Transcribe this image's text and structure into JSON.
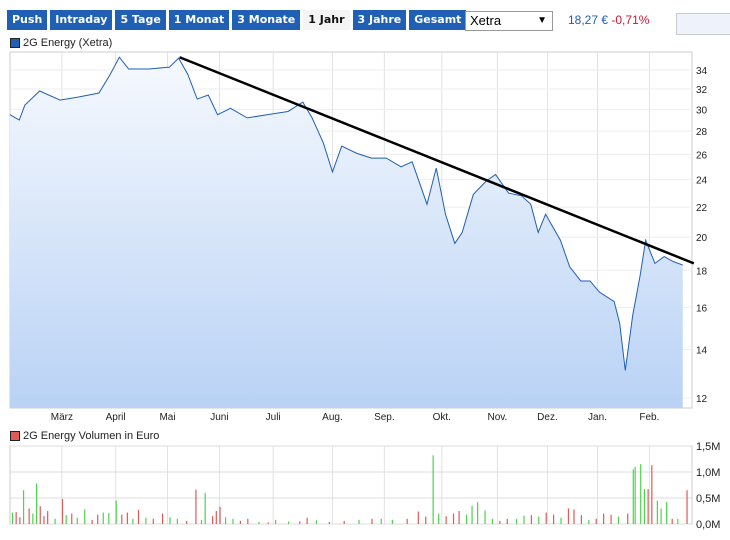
{
  "tabs": [
    "Push",
    "Intraday",
    "5 Tage",
    "1 Monat",
    "3 Monate",
    "1 Jahr",
    "3 Jahre",
    "Gesamt"
  ],
  "active_tab": "1 Jahr",
  "exchange_select": "Xetra",
  "quote": {
    "price": "18,27 €",
    "change": "-0,71%"
  },
  "colors": {
    "tab": "#1f5fb4",
    "line": "#1f5fb4",
    "up": "#4cd44c",
    "down": "#e05a5a"
  },
  "chart_data": [
    {
      "type": "area",
      "title": "2G Energy (Xetra)",
      "yscale": "log",
      "ylim": [
        11.5,
        36
      ],
      "xlim": [
        0,
        368
      ],
      "yticks": [
        12,
        14,
        16,
        18,
        20,
        22,
        24,
        26,
        28,
        30,
        32,
        34
      ],
      "xticks": [
        {
          "label": "März",
          "day": 28
        },
        {
          "label": "April",
          "day": 57
        },
        {
          "label": "Mai",
          "day": 85
        },
        {
          "label": "Juni",
          "day": 113
        },
        {
          "label": "Juli",
          "day": 142
        },
        {
          "label": "Aug.",
          "day": 174
        },
        {
          "label": "Sep.",
          "day": 202
        },
        {
          "label": "Okt.",
          "day": 233
        },
        {
          "label": "Nov.",
          "day": 263
        },
        {
          "label": "Dez.",
          "day": 290
        },
        {
          "label": "Jan.",
          "day": 317
        },
        {
          "label": "Feb.",
          "day": 345
        }
      ],
      "days": [
        0,
        5,
        8,
        16,
        27,
        37,
        48,
        54,
        59,
        64,
        75,
        86,
        91,
        96,
        101,
        107,
        112,
        119,
        128,
        139,
        150,
        158,
        163,
        169,
        174,
        179,
        187,
        195,
        203,
        211,
        217,
        225,
        230,
        235,
        240,
        244,
        250,
        257,
        262,
        269,
        276,
        281,
        285,
        289,
        297,
        302,
        308,
        313,
        318,
        326,
        329,
        332,
        336,
        340,
        343,
        348,
        353,
        358,
        363
      ],
      "prices": [
        29.5,
        29.0,
        30.4,
        31.8,
        30.9,
        31.2,
        31.6,
        33.5,
        35.4,
        34.1,
        34.1,
        34.3,
        35.3,
        33.5,
        31.0,
        31.4,
        29.5,
        30.1,
        29.2,
        29.5,
        29.8,
        30.7,
        29.2,
        27.0,
        24.6,
        26.7,
        26.1,
        25.7,
        25.7,
        25.0,
        25.4,
        22.2,
        24.9,
        21.5,
        19.6,
        20.3,
        22.9,
        23.9,
        24.4,
        23.0,
        22.8,
        22.2,
        20.3,
        21.5,
        19.8,
        18.2,
        17.4,
        17.4,
        16.8,
        16.3,
        15.2,
        13.1,
        15.6,
        17.7,
        19.8,
        18.4,
        18.8,
        18.5,
        18.3
      ],
      "trendline": {
        "from": {
          "day": 91.5,
          "price": 35.4
        },
        "to": {
          "day": 369,
          "price": 18.4
        }
      }
    },
    {
      "type": "bar",
      "title": "2G Energy Volumen in Euro",
      "ylim": [
        0,
        1.5
      ],
      "yticks": [
        "0,0M",
        "0,5M",
        "1,0M",
        "1,5M"
      ],
      "bars": [
        [
          1,
          0.22,
          "u"
        ],
        [
          3,
          0.23,
          "d"
        ],
        [
          5,
          0.13,
          "d"
        ],
        [
          7,
          0.65,
          "u"
        ],
        [
          10,
          0.3,
          "d"
        ],
        [
          12,
          0.2,
          "u"
        ],
        [
          14,
          0.78,
          "u"
        ],
        [
          16,
          0.34,
          "d"
        ],
        [
          18,
          0.15,
          "d"
        ],
        [
          20,
          0.25,
          "d"
        ],
        [
          24,
          0.1,
          "u"
        ],
        [
          28,
          0.48,
          "d"
        ],
        [
          30,
          0.17,
          "u"
        ],
        [
          33,
          0.2,
          "d"
        ],
        [
          36,
          0.12,
          "u"
        ],
        [
          40,
          0.28,
          "u"
        ],
        [
          44,
          0.08,
          "d"
        ],
        [
          47,
          0.18,
          "d"
        ],
        [
          50,
          0.22,
          "u"
        ],
        [
          53,
          0.21,
          "u"
        ],
        [
          57,
          0.45,
          "u"
        ],
        [
          60,
          0.18,
          "d"
        ],
        [
          63,
          0.22,
          "d"
        ],
        [
          66,
          0.1,
          "u"
        ],
        [
          69,
          0.27,
          "d"
        ],
        [
          73,
          0.12,
          "u"
        ],
        [
          77,
          0.1,
          "d"
        ],
        [
          82,
          0.2,
          "d"
        ],
        [
          86,
          0.13,
          "u"
        ],
        [
          90,
          0.1,
          "u"
        ],
        [
          95,
          0.06,
          "d"
        ],
        [
          100,
          0.66,
          "d"
        ],
        [
          103,
          0.08,
          "u"
        ],
        [
          105,
          0.6,
          "u"
        ],
        [
          109,
          0.15,
          "d"
        ],
        [
          111,
          0.25,
          "d"
        ],
        [
          113,
          0.33,
          "d"
        ],
        [
          116,
          0.13,
          "u"
        ],
        [
          120,
          0.1,
          "u"
        ],
        [
          124,
          0.06,
          "d"
        ],
        [
          128,
          0.1,
          "d"
        ],
        [
          134,
          0.04,
          "u"
        ],
        [
          139,
          0.03,
          "d"
        ],
        [
          143,
          0.08,
          "u"
        ],
        [
          150,
          0.05,
          "u"
        ],
        [
          156,
          0.05,
          "d"
        ],
        [
          160,
          0.12,
          "d"
        ],
        [
          165,
          0.07,
          "u"
        ],
        [
          172,
          0.04,
          "d"
        ],
        [
          180,
          0.06,
          "d"
        ],
        [
          188,
          0.08,
          "u"
        ],
        [
          195,
          0.1,
          "d"
        ],
        [
          200,
          0.1,
          "u"
        ],
        [
          206,
          0.08,
          "u"
        ],
        [
          214,
          0.1,
          "d"
        ],
        [
          220,
          0.24,
          "d"
        ],
        [
          224,
          0.14,
          "d"
        ],
        [
          228,
          1.32,
          "u"
        ],
        [
          231,
          0.2,
          "u"
        ],
        [
          235,
          0.15,
          "d"
        ],
        [
          239,
          0.2,
          "d"
        ],
        [
          242,
          0.25,
          "d"
        ],
        [
          246,
          0.18,
          "u"
        ],
        [
          249,
          0.35,
          "u"
        ],
        [
          252,
          0.42,
          "u"
        ],
        [
          256,
          0.26,
          "u"
        ],
        [
          260,
          0.1,
          "u"
        ],
        [
          264,
          0.06,
          "d"
        ],
        [
          268,
          0.1,
          "d"
        ],
        [
          273,
          0.1,
          "u"
        ],
        [
          277,
          0.16,
          "u"
        ],
        [
          281,
          0.17,
          "d"
        ],
        [
          285,
          0.14,
          "u"
        ],
        [
          289,
          0.22,
          "d"
        ],
        [
          293,
          0.18,
          "d"
        ],
        [
          297,
          0.12,
          "u"
        ],
        [
          301,
          0.3,
          "d"
        ],
        [
          304,
          0.28,
          "d"
        ],
        [
          308,
          0.17,
          "d"
        ],
        [
          312,
          0.08,
          "u"
        ],
        [
          316,
          0.1,
          "d"
        ],
        [
          320,
          0.2,
          "d"
        ],
        [
          324,
          0.18,
          "d"
        ],
        [
          328,
          0.14,
          "u"
        ],
        [
          333,
          0.2,
          "d"
        ],
        [
          336,
          1.05,
          "u"
        ],
        [
          337,
          1.1,
          "u"
        ],
        [
          340,
          1.15,
          "u"
        ],
        [
          342,
          0.67,
          "u"
        ],
        [
          344,
          0.67,
          "d"
        ],
        [
          346,
          1.13,
          "d"
        ],
        [
          349,
          0.45,
          "u"
        ],
        [
          351,
          0.3,
          "u"
        ],
        [
          354,
          0.42,
          "u"
        ],
        [
          357,
          0.1,
          "d"
        ],
        [
          360,
          0.1,
          "u"
        ],
        [
          365,
          0.65,
          "d"
        ]
      ]
    }
  ]
}
